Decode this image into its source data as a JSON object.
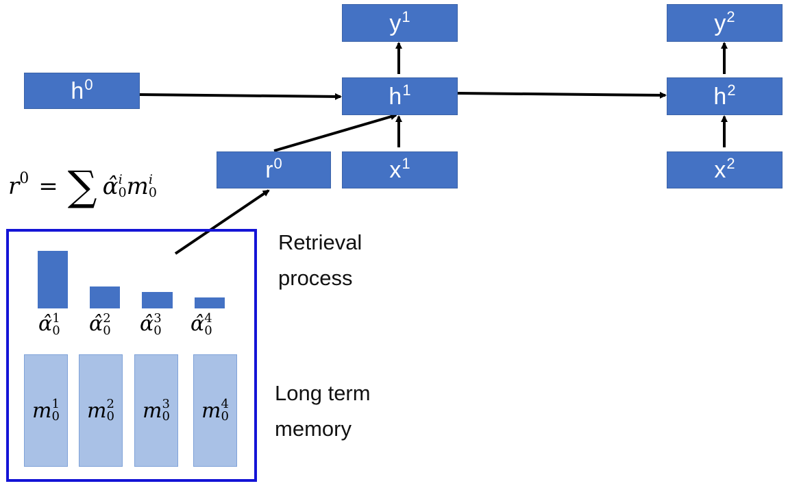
{
  "nodes": {
    "h0": {
      "base": "h",
      "sup": "0"
    },
    "h1": {
      "base": "h",
      "sup": "1"
    },
    "h2": {
      "base": "h",
      "sup": "2"
    },
    "y1": {
      "base": "y",
      "sup": "1"
    },
    "y2": {
      "base": "y",
      "sup": "2"
    },
    "x1": {
      "base": "x",
      "sup": "1"
    },
    "x2": {
      "base": "x",
      "sup": "2"
    },
    "r0": {
      "base": "r",
      "sup": "0"
    }
  },
  "formula": {
    "lhs": "r",
    "lhs_sup": "0",
    "equals": "=",
    "sum": "∑",
    "alpha": "α̂",
    "alpha_sup": "i",
    "alpha_sub": "0",
    "m": "m",
    "m_sup": "i",
    "m_sub": "0"
  },
  "retrieval_label": [
    "Retrieval",
    "process"
  ],
  "memory_label": [
    "Long term",
    "memory"
  ],
  "weights": [
    {
      "symbol": "α̂",
      "sup": "1",
      "sub": "0",
      "value": 0.84
    },
    {
      "symbol": "α̂",
      "sup": "2",
      "sub": "0",
      "value": 0.32
    },
    {
      "symbol": "α̂",
      "sup": "3",
      "sub": "0",
      "value": 0.24
    },
    {
      "symbol": "α̂",
      "sup": "4",
      "sub": "0",
      "value": 0.16
    }
  ],
  "memory_cells": [
    {
      "symbol": "m",
      "sup": "1",
      "sub": "0"
    },
    {
      "symbol": "m",
      "sup": "2",
      "sub": "0"
    },
    {
      "symbol": "m",
      "sup": "3",
      "sub": "0"
    },
    {
      "symbol": "m",
      "sup": "4",
      "sub": "0"
    }
  ],
  "colors": {
    "node_fill": "#4472C4",
    "memory_fill": "#a9c1e6",
    "frame": "#1414d6",
    "arrow": "#000000"
  }
}
